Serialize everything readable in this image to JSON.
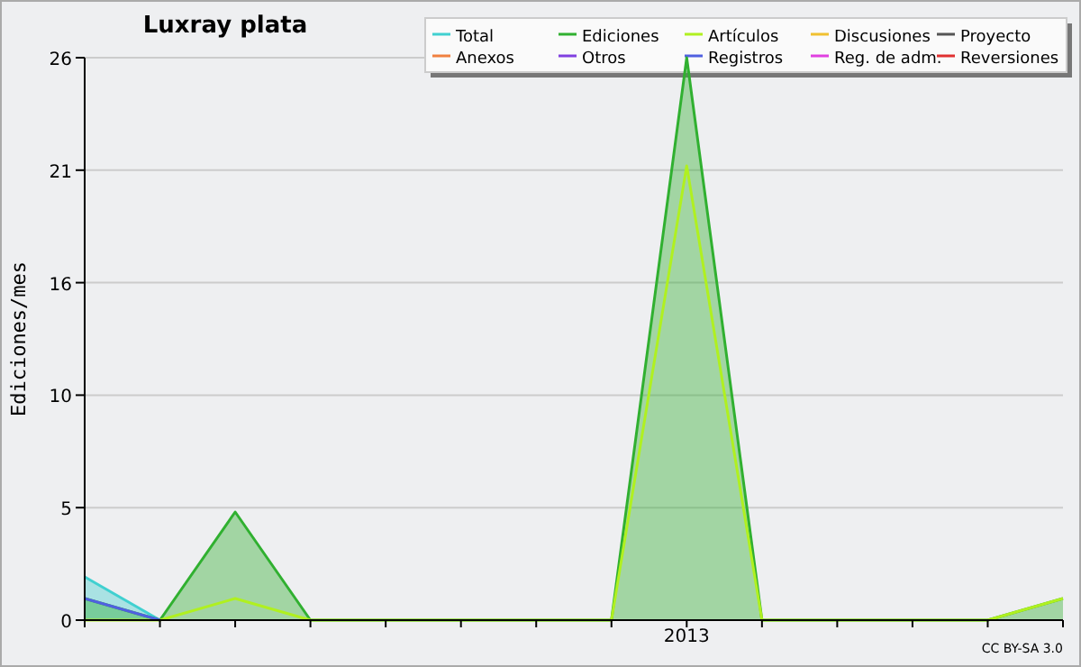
{
  "chart_data": {
    "type": "line",
    "title": "Luxray plata",
    "ylabel": "Ediciones/mes",
    "categories": [
      null,
      null,
      null,
      null,
      null,
      null,
      null,
      null,
      "2013",
      null,
      null,
      null,
      null,
      null
    ],
    "ylim": [
      0,
      26
    ],
    "yticks": [
      0,
      {
        "value": 5.2,
        "label": "5"
      },
      {
        "value": 10.4,
        "label": "10"
      },
      {
        "value": 15.6,
        "label": "16"
      },
      {
        "value": 20.8,
        "label": "21"
      },
      26
    ],
    "grid": "y",
    "legend": "top right",
    "marker": "none",
    "line_style": "solid",
    "annotations": [
      "CC BY-SA 3.0"
    ],
    "series": [
      {
        "name": "Total",
        "type": "area",
        "color": "#40d0d0",
        "values": [
          2,
          0,
          null,
          null,
          null,
          null,
          null,
          null,
          null,
          null,
          null,
          null,
          null,
          null
        ]
      },
      {
        "name": "Ediciones",
        "type": "area",
        "color": "#30b030",
        "values": [
          1,
          0,
          5,
          0,
          0,
          0,
          0,
          0,
          26,
          0,
          0,
          0,
          0,
          1
        ]
      },
      {
        "name": "Artículos",
        "color": "#b0f020",
        "values": [
          0,
          0,
          1,
          0,
          0,
          0,
          0,
          0,
          21,
          0,
          0,
          0,
          0,
          1
        ]
      },
      {
        "name": "Discusiones",
        "color": "#f0c030",
        "values": [
          null,
          null,
          null,
          null,
          null,
          null,
          null,
          null,
          null,
          null,
          null,
          null,
          null,
          null
        ]
      },
      {
        "name": "Proyecto",
        "color": "#555555",
        "values": [
          null,
          null,
          null,
          null,
          null,
          null,
          null,
          null,
          null,
          null,
          null,
          null,
          null,
          null
        ]
      },
      {
        "name": "Anexos",
        "color": "#f08040",
        "values": [
          null,
          null,
          null,
          null,
          null,
          null,
          null,
          null,
          null,
          null,
          null,
          null,
          null,
          null
        ]
      },
      {
        "name": "Otros",
        "color": "#8040e0",
        "values": [
          null,
          null,
          null,
          null,
          null,
          null,
          null,
          null,
          null,
          null,
          null,
          null,
          null,
          null
        ]
      },
      {
        "name": "Registros",
        "color": "#5060e0",
        "values": [
          1,
          0,
          null,
          null,
          null,
          null,
          null,
          null,
          null,
          null,
          null,
          null,
          null,
          null
        ]
      },
      {
        "name": "Reg. de adm.",
        "color": "#e040e0",
        "values": [
          null,
          null,
          null,
          null,
          null,
          null,
          null,
          null,
          null,
          null,
          null,
          null,
          null,
          null
        ]
      },
      {
        "name": "Reversiones",
        "color": "#e03030",
        "values": [
          null,
          null,
          null,
          null,
          null,
          null,
          null,
          null,
          null,
          null,
          null,
          null,
          null,
          null
        ]
      }
    ]
  }
}
